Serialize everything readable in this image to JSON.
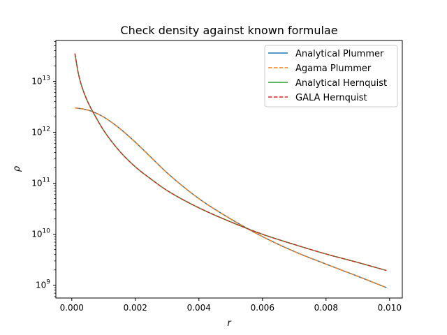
{
  "chart_data": {
    "type": "line",
    "title": "Check density against known formulae",
    "xlabel": "r",
    "ylabel": "ρ",
    "xlim": [
      -0.0005,
      0.0104
    ],
    "ylim_log10": [
      8.75,
      13.8
    ],
    "yscale": "log",
    "grid": false,
    "legend_position": "top-right",
    "x_ticks": [
      {
        "value": 0.0,
        "label": "0.000"
      },
      {
        "value": 0.002,
        "label": "0.002"
      },
      {
        "value": 0.004,
        "label": "0.004"
      },
      {
        "value": 0.006,
        "label": "0.006"
      },
      {
        "value": 0.008,
        "label": "0.008"
      },
      {
        "value": 0.01,
        "label": "0.010"
      }
    ],
    "y_ticks": [
      {
        "exp": 9,
        "label_base": "10",
        "label_exp": "9"
      },
      {
        "exp": 10,
        "label_base": "10",
        "label_exp": "10"
      },
      {
        "exp": 11,
        "label_base": "10",
        "label_exp": "11"
      },
      {
        "exp": 12,
        "label_base": "10",
        "label_exp": "12"
      },
      {
        "exp": 13,
        "label_base": "10",
        "label_exp": "13"
      }
    ],
    "x": [
      0.0001,
      0.0002,
      0.0003,
      0.0005,
      0.0007,
      0.001,
      0.0015,
      0.002,
      0.0025,
      0.003,
      0.004,
      0.005,
      0.006,
      0.007,
      0.008,
      0.009,
      0.0099
    ],
    "series": [
      {
        "name": "Analytical Plummer",
        "color": "#1f77b4",
        "dash": "solid",
        "y": [
          3000000000000.0,
          2960000000000.0,
          2900000000000.0,
          2730000000000.0,
          2470000000000.0,
          2000000000000.0,
          1200000000000.0,
          640000000000.0,
          320000000000.0,
          160000000000.0,
          50000000000.0,
          20000000000.0,
          9000000000.0,
          4600000000.0,
          2600000000.0,
          1500000000.0,
          900000000.0
        ]
      },
      {
        "name": "Agama Plummer",
        "color": "#ff7f0e",
        "dash": "dashed",
        "y": [
          3000000000000.0,
          2960000000000.0,
          2900000000000.0,
          2730000000000.0,
          2470000000000.0,
          2000000000000.0,
          1200000000000.0,
          640000000000.0,
          320000000000.0,
          160000000000.0,
          50000000000.0,
          20000000000.0,
          9000000000.0,
          4600000000.0,
          2600000000.0,
          1500000000.0,
          900000000.0
        ]
      },
      {
        "name": "Analytical Hernquist",
        "color": "#2ca02c",
        "dash": "solid",
        "y": [
          35000000000000.0,
          15000000000000.0,
          8500000000000.0,
          4000000000000.0,
          2300000000000.0,
          1100000000000.0,
          430000000000.0,
          210000000000.0,
          120000000000.0,
          72000000000.0,
          33000000000.0,
          17500000000.0,
          10000000000.0,
          6300000000.0,
          4100000000.0,
          2800000000.0,
          1950000000.0
        ]
      },
      {
        "name": "GALA Hernquist",
        "color": "#d62728",
        "dash": "dashed",
        "y": [
          35000000000000.0,
          15000000000000.0,
          8500000000000.0,
          4000000000000.0,
          2300000000000.0,
          1100000000000.0,
          430000000000.0,
          210000000000.0,
          120000000000.0,
          72000000000.0,
          33000000000.0,
          17500000000.0,
          10000000000.0,
          6300000000.0,
          4100000000.0,
          2800000000.0,
          1950000000.0
        ]
      }
    ]
  }
}
